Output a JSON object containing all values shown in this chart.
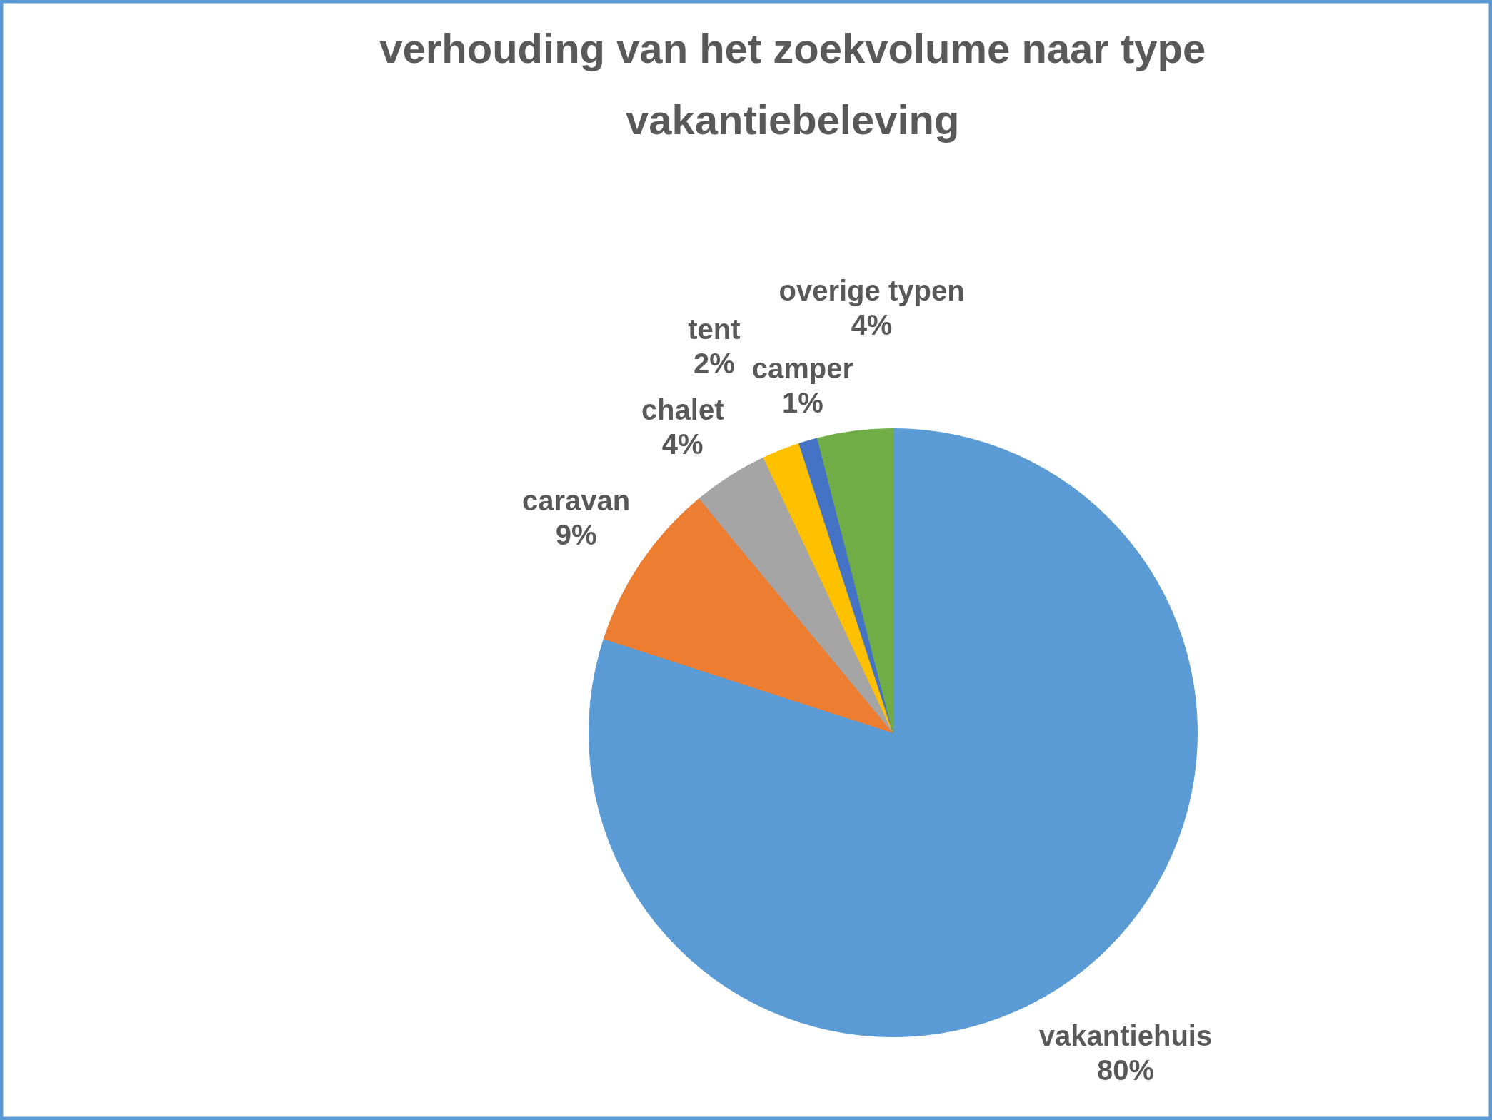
{
  "chart_data": {
    "type": "pie",
    "title": "verhouding van het zoekvolume naar type vakantiebeleving",
    "categories": [
      "vakantiehuis",
      "caravan",
      "chalet",
      "tent",
      "camper",
      "overige typen"
    ],
    "values": [
      80,
      9,
      4,
      2,
      1,
      4
    ],
    "colors": [
      "#5b9bd5",
      "#ed7d31",
      "#a5a5a5",
      "#ffc000",
      "#4472c4",
      "#70ad47"
    ],
    "value_labels": [
      "80%",
      "9%",
      "4%",
      "2%",
      "1%",
      "4%"
    ]
  }
}
